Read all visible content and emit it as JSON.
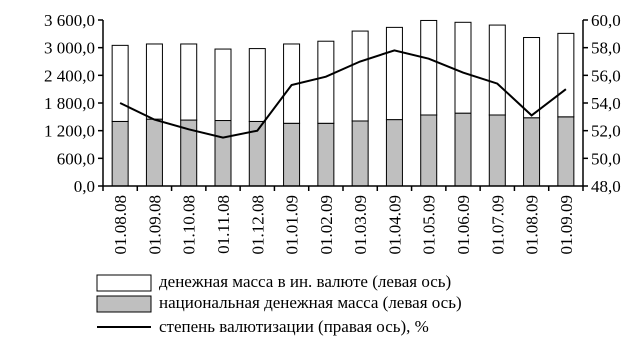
{
  "chart_data": {
    "type": "bar",
    "categories": [
      "01.08.08",
      "01.09.08",
      "01.10.08",
      "01.11.08",
      "01.12.08",
      "01.01.09",
      "01.02.09",
      "01.03.09",
      "01.04.09",
      "01.05.09",
      "01.06.09",
      "01.07.09",
      "01.08.09",
      "01.09.09"
    ],
    "left_axis": {
      "ylim": [
        0,
        3600
      ],
      "ticks": [
        0,
        600,
        1200,
        1800,
        2400,
        3000,
        3600
      ],
      "tick_labels": [
        "0,0",
        "600,0",
        "1 200,0",
        "1 800,0",
        "2 400,0",
        "3 000,0",
        "3 600,0"
      ]
    },
    "right_axis": {
      "ylim": [
        48,
        60
      ],
      "ticks": [
        48,
        50,
        52,
        54,
        56,
        58,
        60
      ],
      "tick_labels": [
        "48,0",
        "50,0",
        "52,0",
        "54,0",
        "56,0",
        "58,0",
        "60,0"
      ]
    },
    "series": [
      {
        "name": "национальная денежная масса (левая ось)",
        "kind": "bar-stacked-bottom",
        "axis": "left",
        "color": "#bfbfbf",
        "values": [
          1400,
          1450,
          1430,
          1420,
          1400,
          1360,
          1360,
          1410,
          1440,
          1540,
          1580,
          1540,
          1480,
          1500
        ]
      },
      {
        "name": "денежная масса в ин. валюте (левая ось)",
        "kind": "bar-stacked-top",
        "axis": "left",
        "color": "#ffffff",
        "values": [
          1650,
          1630,
          1650,
          1550,
          1580,
          1720,
          1780,
          1950,
          2000,
          2050,
          1970,
          1950,
          1740,
          1810
        ]
      },
      {
        "name": "степень валютизации (правая ось), %",
        "kind": "line",
        "axis": "right",
        "color": "#000000",
        "values": [
          54.0,
          52.8,
          52.1,
          51.5,
          52.0,
          55.3,
          55.9,
          57.0,
          57.8,
          57.2,
          56.2,
          55.4,
          53.1,
          55.0
        ]
      }
    ],
    "legend": {
      "placement": "bottom",
      "items": [
        "денежная масса в ин. валюте (левая ось)",
        "национальная денежная масса (левая ось)",
        "степень валютизации (правая ось), %"
      ]
    },
    "grid": false
  }
}
